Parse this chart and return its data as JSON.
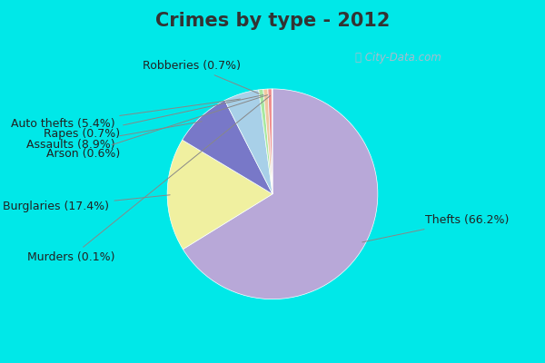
{
  "title": "Crimes by type - 2012",
  "labels": [
    "Thefts",
    "Burglaries",
    "Assaults",
    "Auto thefts",
    "Robberies",
    "Rapes",
    "Arson",
    "Murders"
  ],
  "values": [
    66.2,
    17.4,
    8.9,
    5.4,
    0.7,
    0.7,
    0.6,
    0.1
  ],
  "colors": [
    "#b8a8d8",
    "#f0f0a0",
    "#7878c8",
    "#a8d0e8",
    "#a8e8a0",
    "#f0c8a0",
    "#f09090",
    "#e8e8e8"
  ],
  "background_outer": "#00e8e8",
  "background_inner": "#d8f0e0",
  "title_color": "#333333",
  "title_fontsize": 15,
  "label_fontsize": 9,
  "watermark": "City-Data.com",
  "label_strings": [
    "Thefts (66.2%)",
    "Burglaries (17.4%)",
    "Assaults (8.9%)",
    "Auto thefts (5.4%)",
    "Robberies (0.7%)",
    "Rapes (0.7%)",
    "Arson (0.6%)",
    "Murders (0.1%)"
  ]
}
